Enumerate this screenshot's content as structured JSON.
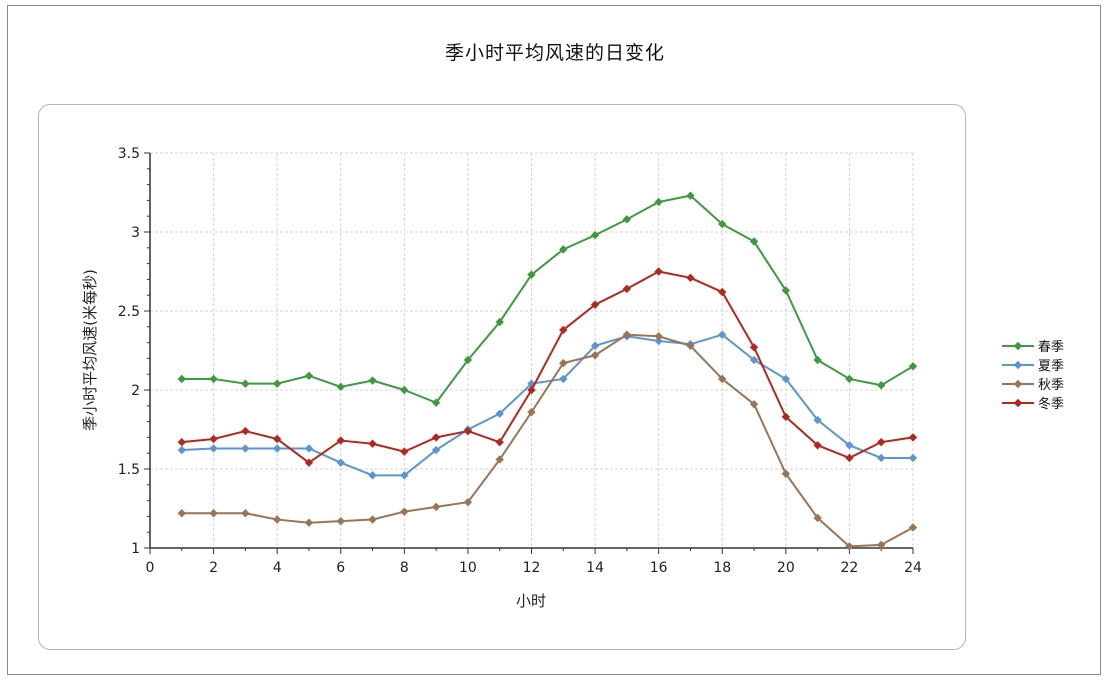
{
  "chart_data": {
    "type": "line",
    "title": "季小时平均风速的日变化",
    "xlabel": "小时",
    "ylabel": "季小时平均风速(米每秒)",
    "xlim": [
      0,
      24
    ],
    "ylim": [
      1,
      3.5
    ],
    "x_ticks": [
      "0",
      "2",
      "4",
      "6",
      "8",
      "10",
      "12",
      "14",
      "16",
      "18",
      "20",
      "22",
      "24"
    ],
    "y_ticks": [
      "1",
      "1.5",
      "2",
      "2.5",
      "3",
      "3.5"
    ],
    "grid": true,
    "legend_position": "right",
    "x": [
      1,
      2,
      3,
      4,
      5,
      6,
      7,
      8,
      9,
      10,
      11,
      12,
      13,
      14,
      15,
      16,
      17,
      18,
      19,
      20,
      21,
      22,
      23,
      24
    ],
    "series": [
      {
        "name": "春季",
        "color": "#3f9a3f",
        "values": [
          2.07,
          2.07,
          2.04,
          2.04,
          2.09,
          2.02,
          2.06,
          2.0,
          1.92,
          2.19,
          2.43,
          2.73,
          2.89,
          2.98,
          3.08,
          3.19,
          3.23,
          3.05,
          2.94,
          2.63,
          2.19,
          2.07,
          2.03,
          2.15
        ]
      },
      {
        "name": "夏季",
        "color": "#5c95d0",
        "values": [
          1.62,
          1.63,
          1.63,
          1.63,
          1.63,
          1.54,
          1.46,
          1.46,
          1.62,
          1.75,
          1.85,
          2.04,
          2.07,
          2.28,
          2.34,
          2.31,
          2.29,
          2.35,
          2.19,
          2.07,
          1.81,
          1.65,
          1.57,
          1.57
        ]
      },
      {
        "name": "秋季",
        "color": "#9b7456",
        "values": [
          1.22,
          1.22,
          1.22,
          1.18,
          1.16,
          1.17,
          1.18,
          1.23,
          1.26,
          1.29,
          1.56,
          1.86,
          2.17,
          2.22,
          2.35,
          2.34,
          2.28,
          2.07,
          1.91,
          1.47,
          1.19,
          1.01,
          1.02,
          1.13
        ]
      },
      {
        "name": "冬季",
        "color": "#b5271d",
        "values": [
          1.67,
          1.69,
          1.74,
          1.69,
          1.54,
          1.68,
          1.66,
          1.61,
          1.7,
          1.74,
          1.67,
          2.0,
          2.38,
          2.54,
          2.64,
          2.75,
          2.71,
          2.62,
          2.27,
          1.83,
          1.65,
          1.57,
          1.67,
          1.7
        ]
      }
    ]
  }
}
